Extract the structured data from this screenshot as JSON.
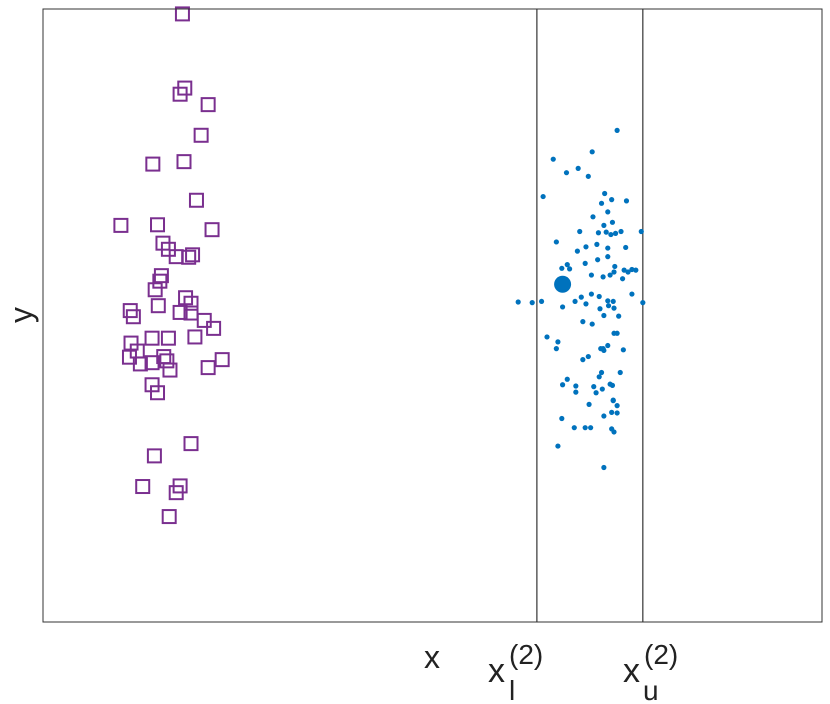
{
  "chart_data": {
    "type": "scatter",
    "xlabel": "x",
    "ylabel": "y",
    "xlim": [
      0,
      100
    ],
    "ylim": [
      0,
      100
    ],
    "grid": false,
    "legend": "none",
    "ticks": {
      "lower": {
        "base": "x",
        "sub": "l",
        "sup": "(2)",
        "value": 63.4
      },
      "upper": {
        "base": "x",
        "sub": "u",
        "sup": "(2)",
        "value": 77.0
      }
    },
    "vlines": [
      63.4,
      77.0
    ],
    "colors": {
      "squares": "#7a2f8f",
      "dots": "#0072bd",
      "axes": "#333333"
    },
    "series": [
      {
        "marker": "open-square",
        "x": [
          17.9,
          18.2,
          17.6,
          21.2,
          20.3,
          14.1,
          18.1,
          19.7,
          10.0,
          14.7,
          18.7,
          21.7,
          15.4,
          16.1,
          17.1,
          15.2,
          19.2,
          14.4,
          15.0,
          18.3,
          14.8,
          19.0,
          11.2,
          11.6,
          17.6,
          20.7,
          19.0,
          21.9,
          19.5,
          11.3,
          14.0,
          12.1,
          11.1,
          15.5,
          16.1,
          15.9,
          12.5,
          14.0,
          16.3,
          21.2,
          14.0,
          14.7,
          23.0,
          19.0,
          14.3,
          12.8,
          17.6,
          17.1,
          16.2
        ],
        "y": [
          99.2,
          87.1,
          86.1,
          84.4,
          79.4,
          74.7,
          75.1,
          68.8,
          64.7,
          64.8,
          59.5,
          64.0,
          61.8,
          60.8,
          59.6,
          56.5,
          59.9,
          54.2,
          55.6,
          52.9,
          51.6,
          52.0,
          50.8,
          49.8,
          50.5,
          49.2,
          50.4,
          47.9,
          46.5,
          45.5,
          46.3,
          44.2,
          43.2,
          43.3,
          46.3,
          42.6,
          42.1,
          42.3,
          41.1,
          41.5,
          38.7,
          37.4,
          42.8,
          29.1,
          27.1,
          22.1,
          22.2,
          21.1,
          17.2
        ]
      },
      {
        "marker": "dot",
        "x": [
          73.7,
          70.5,
          65.5,
          67.2,
          68.7,
          70.0,
          72.1,
          73.0,
          74.9,
          71.7,
          72.5,
          73.1,
          70.6,
          68.9,
          72.0,
          73.5,
          71.3,
          72.9,
          72.3,
          74.2,
          64.2,
          65.9,
          76.8,
          71.1,
          69.7,
          68.6,
          74.8,
          72.5,
          72.5,
          67.3,
          75.6,
          66.6,
          67.6,
          69.6,
          73.4,
          71.2,
          73.3,
          74.6,
          76.1,
          75.1,
          72.8,
          71.9,
          70.4,
          74.4,
          77.0,
          62.8,
          61.0,
          64.0,
          68.3,
          71.4,
          75.6,
          70.4,
          72.5,
          73.2,
          69.1,
          69.7,
          66.7,
          72.6,
          71.5,
          73.3,
          73.9,
          72.0,
          69.3,
          64.7,
          66.1,
          65.9,
          70.5,
          73.7,
          73.3,
          72.5,
          71.6,
          71.9,
          72.0,
          74.5,
          70.0,
          69.3,
          71.7,
          74.1,
          68.4,
          71.4,
          67.3,
          66.7,
          70.7,
          73.1,
          71.8,
          72.8,
          71.0,
          68.4,
          73.2,
          73.2,
          70.1,
          73.7,
          73.0,
          72.0,
          66.6,
          73.7,
          69.6,
          68.2,
          70.3,
          73.0,
          73.3,
          66.1,
          72.0
        ],
        "y": [
          80.2,
          76.7,
          75.5,
          73.3,
          74.0,
          72.7,
          69.9,
          68.9,
          68.7,
          68.3,
          66.9,
          65.2,
          66.1,
          63.7,
          64.7,
          63.4,
          63.5,
          63.2,
          63.6,
          63.7,
          69.4,
          62.0,
          63.7,
          61.6,
          61.2,
          60.5,
          61.1,
          61.0,
          59.6,
          58.3,
          57.5,
          57.7,
          57.6,
          58.5,
          58.0,
          59.1,
          57.1,
          57.4,
          57.4,
          57.1,
          56.6,
          56.3,
          56.6,
          56.0,
          52.1,
          52.1,
          52.2,
          52.3,
          52.3,
          53.1,
          53.5,
          53.5,
          52.4,
          52.3,
          53.0,
          51.9,
          51.4,
          51.6,
          51.1,
          51.2,
          49.9,
          50.0,
          49.0,
          46.5,
          45.7,
          44.6,
          48.6,
          47.1,
          47.1,
          45.1,
          44.6,
          44.6,
          44.3,
          44.4,
          43.3,
          42.8,
          40.7,
          40.7,
          38.5,
          40.0,
          39.6,
          38.7,
          38.4,
          38.6,
          38.0,
          38.8,
          37.4,
          37.5,
          36.1,
          36.2,
          35.5,
          35.3,
          34.2,
          33.6,
          33.2,
          34.1,
          31.7,
          31.7,
          31.7,
          31.5,
          31.0,
          28.7,
          25.2
        ],
        "center": {
          "x": 66.7,
          "y": 55.1
        }
      }
    ]
  }
}
